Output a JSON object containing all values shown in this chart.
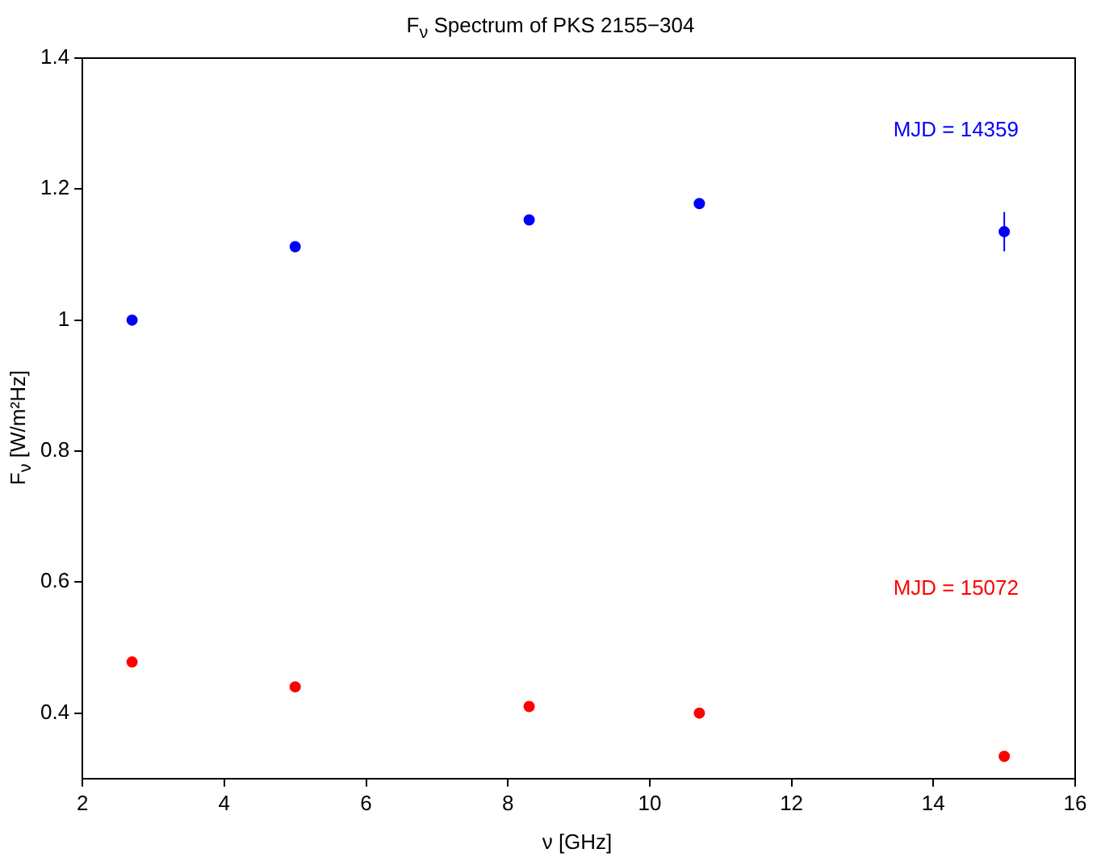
{
  "chart_data": {
    "type": "scatter",
    "title": "F$_{ν}$ Spectrum of PKS 2155−304",
    "xlabel": "ν [GHz]",
    "ylabel": "F$_{ν}$ [W/m²Hz]",
    "series": [
      {
        "name": "MJD = 14359",
        "color": "#0000ff",
        "x": [
          2.7,
          5,
          8.3,
          10.7,
          15
        ],
        "values": [
          1.0,
          1.112,
          1.153,
          1.178,
          1.135
        ],
        "errors": [
          null,
          null,
          null,
          null,
          0.03
        ]
      },
      {
        "name": "MJD = 15072",
        "color": "#ff0000",
        "x": [
          2.7,
          5,
          8.3,
          10.7,
          15
        ],
        "values": [
          0.478,
          0.44,
          0.41,
          0.4,
          0.334
        ]
      }
    ],
    "xlim": [
      2,
      16
    ],
    "xticks": [
      2,
      4,
      6,
      8,
      10,
      12,
      14,
      16
    ],
    "ylim": [
      0.3,
      1.4
    ],
    "yticks": [
      0.4,
      0.6,
      0.8,
      1,
      1.2,
      1.4
    ],
    "grid": false,
    "legend": false,
    "marker": "circle"
  }
}
